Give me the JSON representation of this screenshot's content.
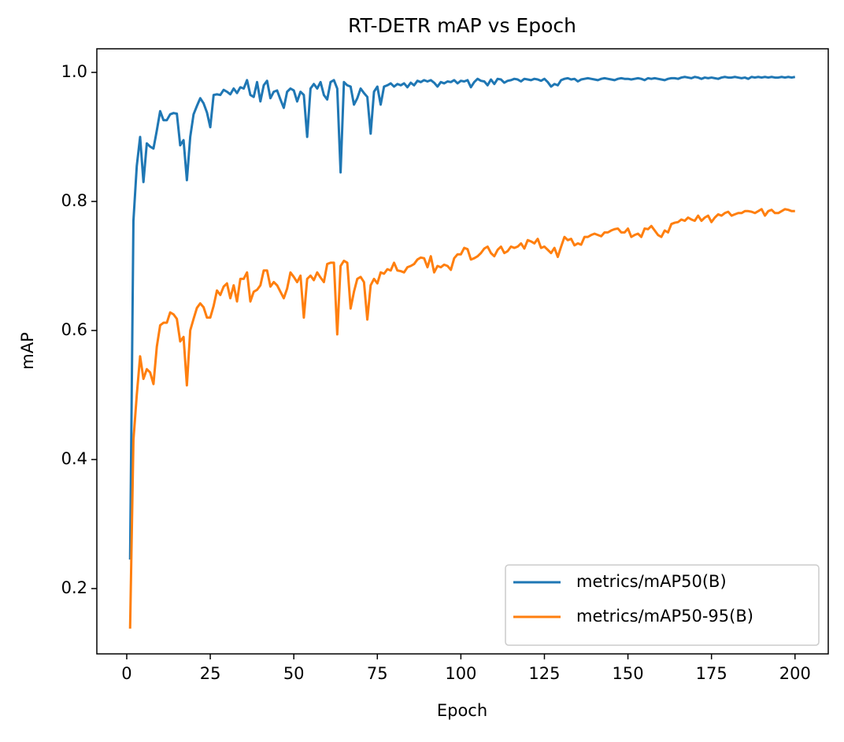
{
  "chart_data": {
    "type": "line",
    "title": "RT-DETR mAP vs Epoch",
    "x_label": "Epoch",
    "y_label": "mAP",
    "x": [
      1,
      2,
      3,
      4,
      5,
      6,
      7,
      8,
      9,
      10,
      11,
      12,
      13,
      14,
      15,
      16,
      17,
      18,
      19,
      20,
      21,
      22,
      23,
      24,
      25,
      26,
      27,
      28,
      29,
      30,
      31,
      32,
      33,
      34,
      35,
      36,
      37,
      38,
      39,
      40,
      41,
      42,
      43,
      44,
      45,
      46,
      47,
      48,
      49,
      50,
      51,
      52,
      53,
      54,
      55,
      56,
      57,
      58,
      59,
      60,
      61,
      62,
      63,
      64,
      65,
      66,
      67,
      68,
      69,
      70,
      71,
      72,
      73,
      74,
      75,
      76,
      77,
      78,
      79,
      80,
      81,
      82,
      83,
      84,
      85,
      86,
      87,
      88,
      89,
      90,
      91,
      92,
      93,
      94,
      95,
      96,
      97,
      98,
      99,
      100,
      101,
      102,
      103,
      104,
      105,
      106,
      107,
      108,
      109,
      110,
      111,
      112,
      113,
      114,
      115,
      116,
      117,
      118,
      119,
      120,
      121,
      122,
      123,
      124,
      125,
      126,
      127,
      128,
      129,
      130,
      131,
      132,
      133,
      134,
      135,
      136,
      137,
      138,
      139,
      140,
      141,
      142,
      143,
      144,
      145,
      146,
      147,
      148,
      149,
      150,
      151,
      152,
      153,
      154,
      155,
      156,
      157,
      158,
      159,
      160,
      161,
      162,
      163,
      164,
      165,
      166,
      167,
      168,
      169,
      170,
      171,
      172,
      173,
      174,
      175,
      176,
      177,
      178,
      179,
      180,
      181,
      182,
      183,
      184,
      185,
      186,
      187,
      188,
      189,
      190,
      191,
      192,
      193,
      194,
      195,
      196,
      197,
      198,
      199,
      200
    ],
    "series": [
      {
        "name": "metrics/mAP50(B)",
        "color": "#1f77b4",
        "values": [
          0.245,
          0.77,
          0.855,
          0.9,
          0.83,
          0.89,
          0.885,
          0.882,
          0.91,
          0.94,
          0.926,
          0.926,
          0.935,
          0.937,
          0.936,
          0.887,
          0.895,
          0.833,
          0.9,
          0.935,
          0.948,
          0.96,
          0.952,
          0.938,
          0.915,
          0.965,
          0.966,
          0.965,
          0.973,
          0.97,
          0.966,
          0.975,
          0.968,
          0.977,
          0.975,
          0.988,
          0.965,
          0.962,
          0.985,
          0.955,
          0.98,
          0.987,
          0.96,
          0.97,
          0.972,
          0.958,
          0.945,
          0.97,
          0.975,
          0.972,
          0.955,
          0.97,
          0.965,
          0.9,
          0.975,
          0.982,
          0.975,
          0.985,
          0.965,
          0.958,
          0.985,
          0.988,
          0.975,
          0.845,
          0.985,
          0.98,
          0.978,
          0.95,
          0.96,
          0.975,
          0.968,
          0.962,
          0.905,
          0.97,
          0.978,
          0.95,
          0.978,
          0.98,
          0.983,
          0.978,
          0.982,
          0.98,
          0.983,
          0.977,
          0.984,
          0.98,
          0.987,
          0.985,
          0.988,
          0.986,
          0.988,
          0.984,
          0.978,
          0.985,
          0.983,
          0.986,
          0.985,
          0.988,
          0.983,
          0.987,
          0.986,
          0.988,
          0.977,
          0.985,
          0.99,
          0.987,
          0.986,
          0.98,
          0.989,
          0.982,
          0.99,
          0.989,
          0.984,
          0.987,
          0.988,
          0.99,
          0.989,
          0.986,
          0.99,
          0.989,
          0.988,
          0.99,
          0.989,
          0.987,
          0.99,
          0.985,
          0.978,
          0.982,
          0.98,
          0.988,
          0.99,
          0.991,
          0.989,
          0.99,
          0.986,
          0.989,
          0.99,
          0.991,
          0.99,
          0.989,
          0.988,
          0.99,
          0.991,
          0.99,
          0.989,
          0.988,
          0.99,
          0.991,
          0.99,
          0.99,
          0.989,
          0.99,
          0.991,
          0.99,
          0.988,
          0.991,
          0.99,
          0.991,
          0.99,
          0.989,
          0.988,
          0.99,
          0.991,
          0.991,
          0.99,
          0.992,
          0.993,
          0.992,
          0.991,
          0.993,
          0.992,
          0.99,
          0.992,
          0.991,
          0.992,
          0.991,
          0.99,
          0.992,
          0.993,
          0.992,
          0.992,
          0.993,
          0.992,
          0.991,
          0.992,
          0.99,
          0.993,
          0.992,
          0.993,
          0.992,
          0.993,
          0.992,
          0.993,
          0.992,
          0.992,
          0.993,
          0.992,
          0.993,
          0.992,
          0.993
        ]
      },
      {
        "name": "metrics/mAP50-95(B)",
        "color": "#ff7f0e",
        "values": [
          0.138,
          0.43,
          0.5,
          0.56,
          0.525,
          0.54,
          0.535,
          0.517,
          0.575,
          0.608,
          0.612,
          0.612,
          0.628,
          0.625,
          0.618,
          0.583,
          0.59,
          0.515,
          0.6,
          0.618,
          0.635,
          0.642,
          0.636,
          0.62,
          0.62,
          0.638,
          0.662,
          0.655,
          0.668,
          0.673,
          0.65,
          0.67,
          0.645,
          0.68,
          0.68,
          0.69,
          0.645,
          0.66,
          0.663,
          0.67,
          0.693,
          0.693,
          0.668,
          0.675,
          0.67,
          0.66,
          0.65,
          0.665,
          0.69,
          0.683,
          0.675,
          0.685,
          0.62,
          0.68,
          0.685,
          0.678,
          0.69,
          0.682,
          0.675,
          0.703,
          0.705,
          0.705,
          0.594,
          0.7,
          0.708,
          0.705,
          0.634,
          0.66,
          0.68,
          0.683,
          0.675,
          0.617,
          0.67,
          0.68,
          0.673,
          0.69,
          0.688,
          0.695,
          0.693,
          0.705,
          0.693,
          0.692,
          0.69,
          0.698,
          0.7,
          0.703,
          0.71,
          0.713,
          0.712,
          0.698,
          0.715,
          0.69,
          0.7,
          0.698,
          0.702,
          0.7,
          0.694,
          0.712,
          0.718,
          0.718,
          0.728,
          0.726,
          0.71,
          0.712,
          0.715,
          0.72,
          0.727,
          0.73,
          0.72,
          0.715,
          0.725,
          0.73,
          0.72,
          0.723,
          0.73,
          0.728,
          0.73,
          0.735,
          0.727,
          0.74,
          0.738,
          0.735,
          0.742,
          0.728,
          0.73,
          0.725,
          0.72,
          0.728,
          0.714,
          0.73,
          0.745,
          0.74,
          0.742,
          0.732,
          0.735,
          0.733,
          0.745,
          0.745,
          0.748,
          0.75,
          0.748,
          0.746,
          0.752,
          0.752,
          0.755,
          0.757,
          0.758,
          0.752,
          0.752,
          0.758,
          0.745,
          0.748,
          0.75,
          0.745,
          0.758,
          0.757,
          0.762,
          0.755,
          0.748,
          0.745,
          0.755,
          0.752,
          0.765,
          0.767,
          0.768,
          0.772,
          0.77,
          0.775,
          0.772,
          0.77,
          0.778,
          0.77,
          0.775,
          0.778,
          0.768,
          0.775,
          0.78,
          0.778,
          0.782,
          0.784,
          0.778,
          0.78,
          0.782,
          0.782,
          0.785,
          0.785,
          0.784,
          0.782,
          0.785,
          0.788,
          0.778,
          0.785,
          0.787,
          0.782,
          0.782,
          0.785,
          0.788,
          0.787,
          0.785,
          0.785
        ]
      }
    ],
    "xlim": [
      -8.95,
      209.95
    ],
    "xticks": [
      0,
      25,
      50,
      75,
      100,
      125,
      150,
      175,
      200
    ],
    "ylim": [
      0.0988,
      1.0366
    ],
    "yticks": [
      0.2,
      0.4,
      0.6,
      0.8,
      {
        "value": 1,
        "label": "1.0"
      }
    ],
    "legend": "lower right"
  }
}
